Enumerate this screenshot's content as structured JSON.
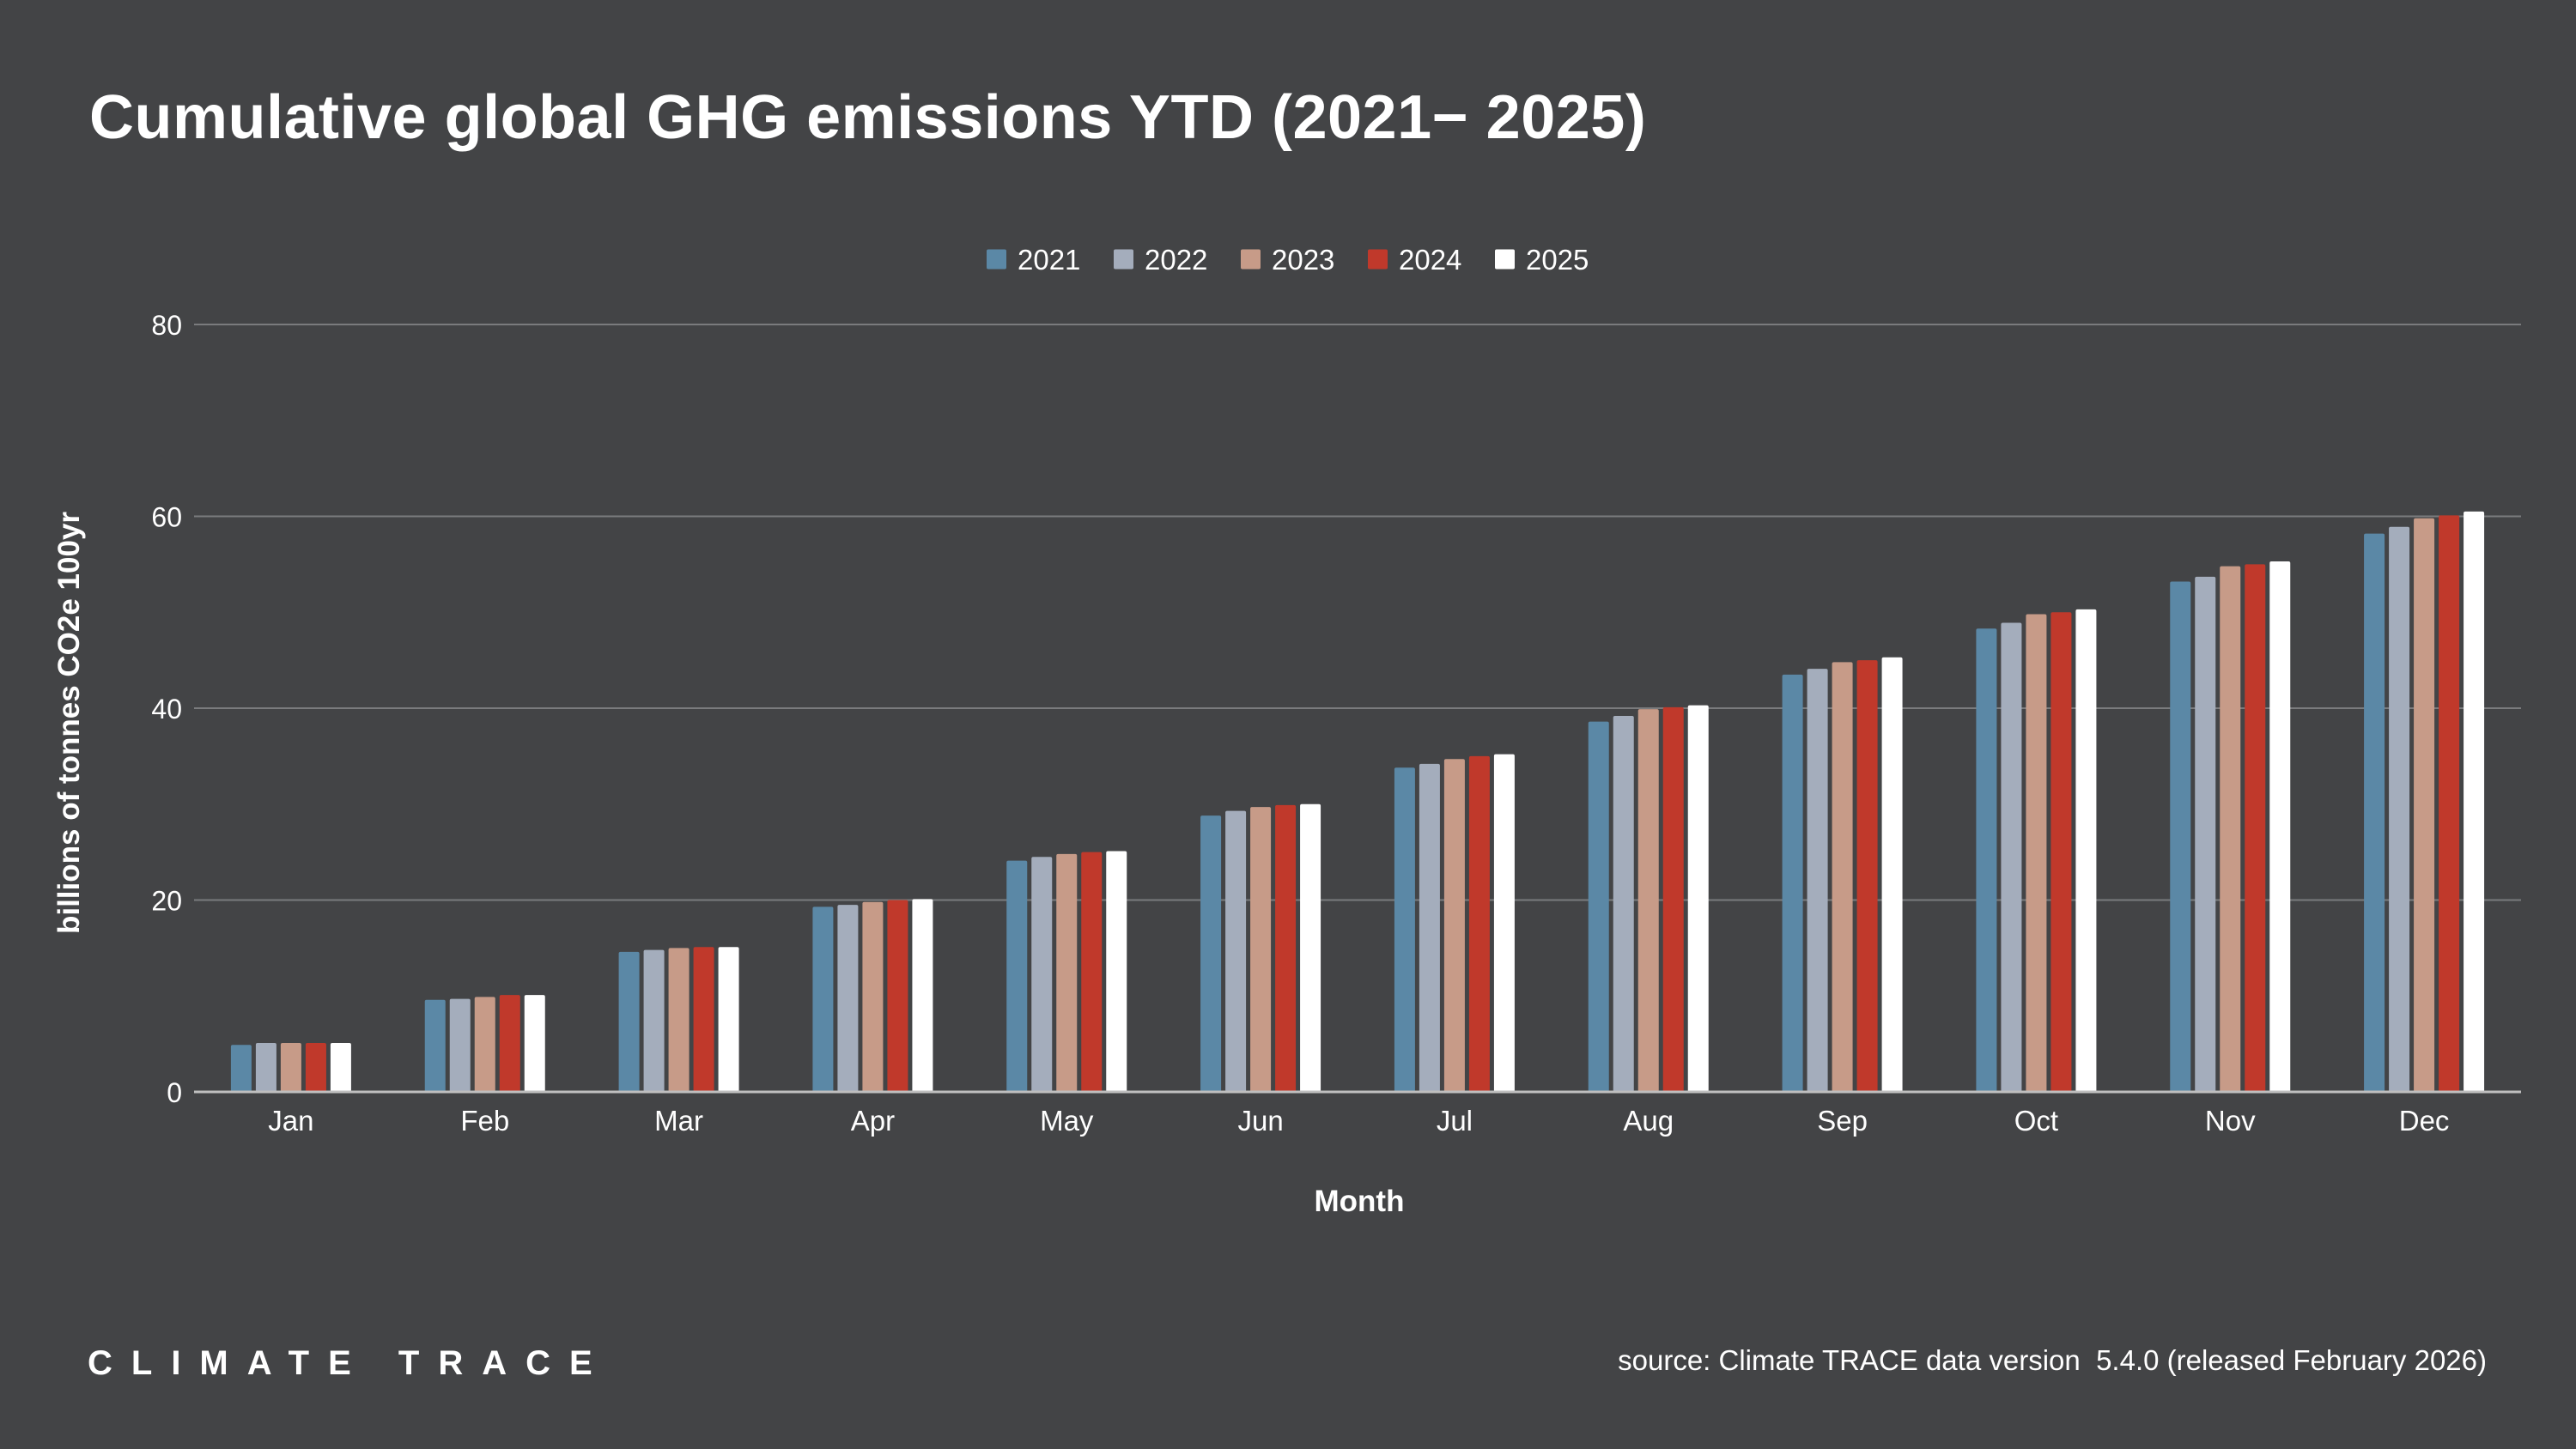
{
  "header": {
    "title": "Cumulative global GHG emissions YTD (2021− 2025)"
  },
  "footer": {
    "brand": "CLIMATE TRACE",
    "source": "source: Climate TRACE data version  5.4.0 (released February 2026)"
  },
  "colors": {
    "background": "#434446",
    "gridline": "#7a7b7d",
    "axis": "#bfbfbf",
    "text": "#ffffff"
  },
  "chart_data": {
    "type": "bar",
    "title": "Cumulative global GHG emissions YTD (2021− 2025)",
    "xlabel": "Month",
    "ylabel": "billions of tonnes CO2e 100yr",
    "ylim": [
      0,
      80
    ],
    "yticks": [
      0,
      20,
      40,
      60,
      80
    ],
    "grid": true,
    "legend_position": "top-center",
    "categories": [
      "Jan",
      "Feb",
      "Mar",
      "Apr",
      "May",
      "Jun",
      "Jul",
      "Aug",
      "Sep",
      "Oct",
      "Nov",
      "Dec"
    ],
    "series": [
      {
        "name": "2021",
        "color": "#5b88a6",
        "values": [
          4.9,
          9.6,
          14.6,
          19.3,
          24.1,
          28.8,
          33.8,
          38.6,
          43.5,
          48.3,
          53.2,
          58.2
        ]
      },
      {
        "name": "2022",
        "color": "#a4adbc",
        "values": [
          5.1,
          9.7,
          14.8,
          19.5,
          24.5,
          29.3,
          34.2,
          39.2,
          44.1,
          48.9,
          53.7,
          58.9
        ]
      },
      {
        "name": "2023",
        "color": "#c79b88",
        "values": [
          5.1,
          9.9,
          15.0,
          19.8,
          24.8,
          29.7,
          34.7,
          39.9,
          44.8,
          49.8,
          54.8,
          59.8
        ]
      },
      {
        "name": "2024",
        "color": "#c0392b",
        "values": [
          5.1,
          10.1,
          15.1,
          20.0,
          25.0,
          29.9,
          35.0,
          40.1,
          45.0,
          50.0,
          55.0,
          60.1
        ]
      },
      {
        "name": "2025",
        "color": "#ffffff",
        "values": [
          5.1,
          10.1,
          15.1,
          20.1,
          25.1,
          30.0,
          35.2,
          40.3,
          45.3,
          50.3,
          55.3,
          60.5
        ]
      }
    ]
  }
}
